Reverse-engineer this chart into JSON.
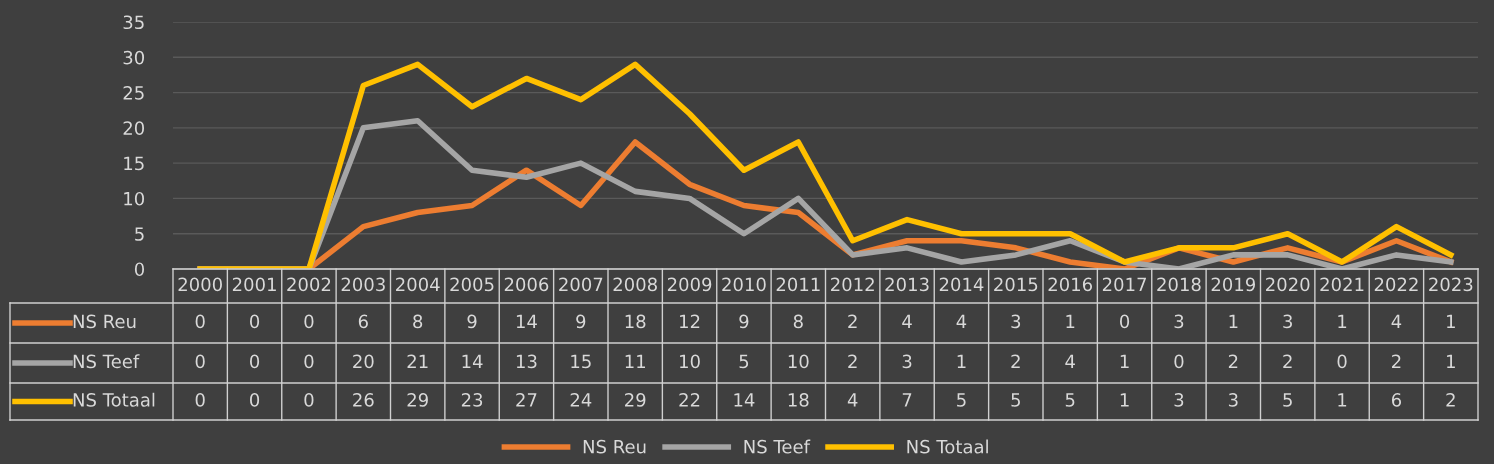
{
  "chart_data": {
    "type": "line",
    "categories": [
      "2000",
      "2001",
      "2002",
      "2003",
      "2004",
      "2005",
      "2006",
      "2007",
      "2008",
      "2009",
      "2010",
      "2011",
      "2012",
      "2013",
      "2014",
      "2015",
      "2016",
      "2017",
      "2018",
      "2019",
      "2020",
      "2021",
      "2022",
      "2023"
    ],
    "series": [
      {
        "name": "NS Reu",
        "color": "#ed7d31",
        "values": [
          0,
          0,
          0,
          6,
          8,
          9,
          14,
          9,
          18,
          12,
          9,
          8,
          2,
          4,
          4,
          3,
          1,
          0,
          3,
          1,
          3,
          1,
          4,
          1
        ]
      },
      {
        "name": "NS Teef",
        "color": "#a5a5a5",
        "values": [
          0,
          0,
          0,
          20,
          21,
          14,
          13,
          15,
          11,
          10,
          5,
          10,
          2,
          3,
          1,
          2,
          4,
          1,
          0,
          2,
          2,
          0,
          2,
          1
        ]
      },
      {
        "name": "NS Totaal",
        "color": "#ffc000",
        "values": [
          0,
          0,
          0,
          26,
          29,
          23,
          27,
          24,
          29,
          22,
          14,
          18,
          4,
          7,
          5,
          5,
          5,
          1,
          3,
          3,
          5,
          1,
          6,
          2
        ]
      }
    ],
    "ylim": [
      0,
      35
    ],
    "yticks": [
      0,
      5,
      10,
      15,
      20,
      25,
      30,
      35
    ],
    "grid": "y",
    "legend": "bottom",
    "data_labels": true,
    "marker": "none",
    "line_style": "solid"
  }
}
